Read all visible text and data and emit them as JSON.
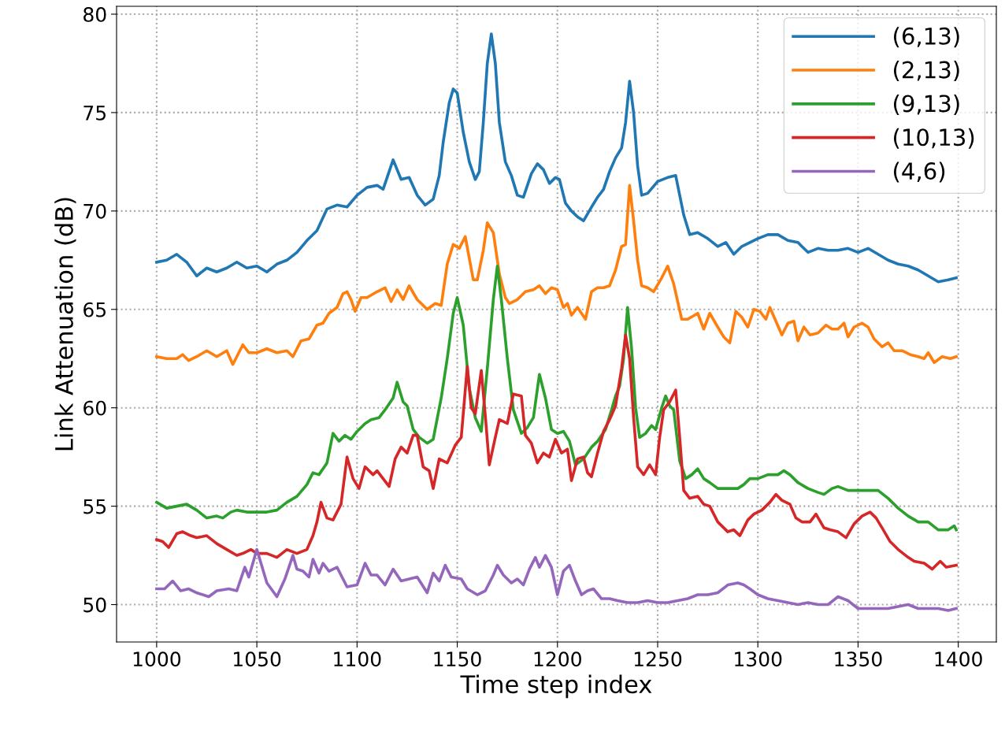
{
  "chart_data": {
    "type": "line",
    "xlabel": "Time step index",
    "ylabel": "Link Attenuation (dB)",
    "xlim": [
      980,
      1419
    ],
    "xticks": [
      1000,
      1050,
      1100,
      1150,
      1200,
      1250,
      1300,
      1350,
      1400
    ],
    "ylim": [
      48.1,
      80.4
    ],
    "yticks": [
      50,
      55,
      60,
      65,
      70,
      75,
      80
    ],
    "grid": true,
    "legend": "top right",
    "line_style": "solid",
    "marker": "none",
    "series": [
      {
        "name": "(6,13)",
        "color": "#1f77b4",
        "x": [
          1000,
          1005,
          1010,
          1015,
          1020,
          1025,
          1030,
          1035,
          1040,
          1045,
          1050,
          1055,
          1060,
          1065,
          1070,
          1075,
          1080,
          1085,
          1090,
          1095,
          1100,
          1105,
          1110,
          1113,
          1118,
          1122,
          1126,
          1130,
          1134,
          1138,
          1141,
          1143,
          1146,
          1148,
          1150,
          1153,
          1156,
          1159,
          1161,
          1163,
          1165,
          1167,
          1169,
          1171,
          1174,
          1177,
          1180,
          1183,
          1187,
          1190,
          1193,
          1196,
          1199,
          1201,
          1204,
          1207,
          1210,
          1213,
          1217,
          1220,
          1223,
          1226,
          1229,
          1232,
          1234,
          1236,
          1238,
          1240,
          1242,
          1245,
          1250,
          1255,
          1259,
          1263,
          1266,
          1270,
          1275,
          1280,
          1284,
          1288,
          1292,
          1296,
          1300,
          1305,
          1310,
          1315,
          1320,
          1325,
          1330,
          1335,
          1340,
          1345,
          1350,
          1355,
          1360,
          1365,
          1370,
          1375,
          1380,
          1385,
          1390,
          1395,
          1399
        ],
        "values": [
          67.4,
          67.5,
          67.8,
          67.4,
          66.7,
          67.1,
          66.9,
          67.1,
          67.4,
          67.1,
          67.2,
          66.9,
          67.3,
          67.5,
          67.9,
          68.5,
          69.0,
          70.1,
          70.3,
          70.2,
          70.8,
          71.2,
          71.3,
          71.1,
          72.6,
          71.6,
          71.7,
          70.8,
          70.3,
          70.6,
          71.8,
          73.5,
          75.5,
          76.2,
          76.0,
          74.0,
          72.5,
          71.6,
          72.0,
          74.5,
          77.5,
          79.0,
          77.5,
          74.5,
          72.5,
          71.8,
          70.8,
          70.7,
          71.9,
          72.4,
          72.1,
          71.4,
          71.7,
          71.6,
          70.4,
          70.0,
          69.7,
          69.5,
          70.2,
          70.7,
          71.1,
          72.0,
          72.7,
          73.2,
          74.5,
          76.6,
          75.0,
          72.3,
          70.8,
          70.9,
          71.5,
          71.7,
          71.8,
          69.8,
          68.8,
          68.9,
          68.6,
          68.2,
          68.4,
          67.8,
          68.2,
          68.4,
          68.6,
          68.8,
          68.8,
          68.5,
          68.4,
          67.9,
          68.1,
          68.0,
          68.0,
          68.1,
          67.9,
          68.1,
          67.8,
          67.5,
          67.3,
          67.2,
          67.0,
          66.7,
          66.4,
          66.5,
          66.6
        ]
      },
      {
        "name": "(2,13)",
        "color": "#ff7f0e",
        "x": [
          1000,
          1005,
          1010,
          1013,
          1016,
          1020,
          1025,
          1030,
          1035,
          1038,
          1043,
          1046,
          1050,
          1055,
          1060,
          1065,
          1068,
          1072,
          1076,
          1080,
          1083,
          1086,
          1090,
          1093,
          1095,
          1097,
          1099,
          1102,
          1105,
          1110,
          1114,
          1117,
          1120,
          1123,
          1126,
          1130,
          1135,
          1139,
          1142,
          1145,
          1148,
          1151,
          1154,
          1158,
          1160,
          1163,
          1165,
          1168,
          1171,
          1174,
          1176,
          1180,
          1184,
          1188,
          1191,
          1194,
          1197,
          1200,
          1203,
          1205,
          1207,
          1210,
          1214,
          1217,
          1220,
          1223,
          1226,
          1229,
          1232,
          1234,
          1236,
          1238,
          1240,
          1242,
          1245,
          1248,
          1252,
          1255,
          1258,
          1262,
          1265,
          1270,
          1273,
          1276,
          1280,
          1283,
          1286,
          1289,
          1292,
          1295,
          1298,
          1301,
          1304,
          1306,
          1309,
          1312,
          1315,
          1318,
          1320,
          1323,
          1326,
          1330,
          1334,
          1337,
          1340,
          1343,
          1345,
          1348,
          1352,
          1355,
          1358,
          1362,
          1365,
          1368,
          1372,
          1376,
          1380,
          1383,
          1385,
          1388,
          1392,
          1396,
          1399
        ],
        "values": [
          62.6,
          62.5,
          62.5,
          62.7,
          62.4,
          62.6,
          62.9,
          62.6,
          62.9,
          62.2,
          63.2,
          62.8,
          62.8,
          63.0,
          62.8,
          62.9,
          62.6,
          63.4,
          63.5,
          64.2,
          64.3,
          64.8,
          65.1,
          65.8,
          65.9,
          65.5,
          64.9,
          65.6,
          65.6,
          65.9,
          66.1,
          65.4,
          66.0,
          65.5,
          66.2,
          65.5,
          65.0,
          65.3,
          65.2,
          67.3,
          68.3,
          68.1,
          68.7,
          66.5,
          66.5,
          68.0,
          69.4,
          68.9,
          66.8,
          65.6,
          65.3,
          65.5,
          65.9,
          66.0,
          66.2,
          65.8,
          66.1,
          66.0,
          65.1,
          65.3,
          64.7,
          65.1,
          64.5,
          65.9,
          66.1,
          66.1,
          66.2,
          67.0,
          68.2,
          68.3,
          71.3,
          69.5,
          67.5,
          66.2,
          66.1,
          65.9,
          66.6,
          67.2,
          66.3,
          64.5,
          64.5,
          64.8,
          64.0,
          64.8,
          64.1,
          63.6,
          63.3,
          64.9,
          64.6,
          64.1,
          65.0,
          64.9,
          64.5,
          65.1,
          64.4,
          63.7,
          64.3,
          64.4,
          63.4,
          64.1,
          63.7,
          63.8,
          64.2,
          64.0,
          64.0,
          64.3,
          63.6,
          64.1,
          64.3,
          64.1,
          63.5,
          63.1,
          63.3,
          62.9,
          62.9,
          62.7,
          62.6,
          62.5,
          62.8,
          62.3,
          62.6,
          62.5,
          62.6
        ]
      },
      {
        "name": "(9,13)",
        "color": "#2ca02c",
        "x": [
          1000,
          1005,
          1010,
          1015,
          1020,
          1025,
          1030,
          1033,
          1037,
          1040,
          1045,
          1050,
          1055,
          1060,
          1065,
          1070,
          1075,
          1078,
          1081,
          1085,
          1088,
          1091,
          1094,
          1097,
          1100,
          1104,
          1107,
          1111,
          1114,
          1118,
          1120,
          1123,
          1125,
          1128,
          1131,
          1135,
          1138,
          1142,
          1145,
          1148,
          1150,
          1153,
          1156,
          1159,
          1162,
          1165,
          1168,
          1170,
          1172,
          1175,
          1178,
          1182,
          1185,
          1188,
          1191,
          1194,
          1197,
          1200,
          1203,
          1206,
          1209,
          1213,
          1217,
          1220,
          1224,
          1227,
          1229,
          1231,
          1233,
          1235,
          1237,
          1239,
          1241,
          1244,
          1247,
          1249,
          1252,
          1254,
          1256,
          1258,
          1261,
          1264,
          1267,
          1270,
          1273,
          1276,
          1280,
          1285,
          1290,
          1293,
          1296,
          1300,
          1305,
          1310,
          1313,
          1316,
          1320,
          1325,
          1330,
          1333,
          1337,
          1340,
          1345,
          1350,
          1355,
          1360,
          1365,
          1370,
          1375,
          1380,
          1385,
          1390,
          1395,
          1398,
          1399
        ],
        "values": [
          55.2,
          54.9,
          55.0,
          55.1,
          54.8,
          54.4,
          54.5,
          54.4,
          54.7,
          54.8,
          54.7,
          54.7,
          54.7,
          54.8,
          55.2,
          55.5,
          56.1,
          56.7,
          56.6,
          57.2,
          58.7,
          58.3,
          58.6,
          58.4,
          58.8,
          59.2,
          59.4,
          59.5,
          59.9,
          60.5,
          61.3,
          60.3,
          60.1,
          58.9,
          58.5,
          58.2,
          58.4,
          60.5,
          62.5,
          64.8,
          65.6,
          64.2,
          61.0,
          59.5,
          58.8,
          62.0,
          65.5,
          67.2,
          65.5,
          62.5,
          59.9,
          58.7,
          59.0,
          59.5,
          61.7,
          60.5,
          58.9,
          58.7,
          58.8,
          58.3,
          57.1,
          57.4,
          58.0,
          58.3,
          58.9,
          59.9,
          60.6,
          61.1,
          62.5,
          65.1,
          63.0,
          60.0,
          58.5,
          58.7,
          59.1,
          58.9,
          60.0,
          60.6,
          60.1,
          59.9,
          57.3,
          56.4,
          56.6,
          56.9,
          56.4,
          56.2,
          55.9,
          55.9,
          55.9,
          56.1,
          56.4,
          56.4,
          56.6,
          56.6,
          56.8,
          56.6,
          56.2,
          55.9,
          55.7,
          55.6,
          55.9,
          56.0,
          55.8,
          55.8,
          55.8,
          55.8,
          55.4,
          54.9,
          54.5,
          54.2,
          54.2,
          53.8,
          53.8,
          54.0,
          53.8
        ]
      },
      {
        "name": "(10,13)",
        "color": "#d62728",
        "x": [
          1000,
          1003,
          1006,
          1010,
          1013,
          1017,
          1020,
          1025,
          1030,
          1035,
          1040,
          1043,
          1047,
          1050,
          1055,
          1060,
          1065,
          1070,
          1075,
          1078,
          1080,
          1082,
          1085,
          1088,
          1092,
          1095,
          1098,
          1101,
          1104,
          1108,
          1110,
          1113,
          1116,
          1119,
          1122,
          1125,
          1128,
          1130,
          1133,
          1136,
          1138,
          1141,
          1145,
          1149,
          1152,
          1155,
          1157,
          1159,
          1162,
          1164,
          1166,
          1169,
          1171,
          1175,
          1178,
          1182,
          1184,
          1187,
          1190,
          1193,
          1196,
          1199,
          1202,
          1205,
          1207,
          1210,
          1213,
          1215,
          1217,
          1220,
          1223,
          1226,
          1229,
          1232,
          1234,
          1236,
          1238,
          1240,
          1243,
          1246,
          1249,
          1251,
          1253,
          1256,
          1259,
          1261,
          1263,
          1266,
          1270,
          1273,
          1276,
          1280,
          1285,
          1288,
          1291,
          1295,
          1298,
          1302,
          1306,
          1309,
          1312,
          1316,
          1319,
          1322,
          1326,
          1329,
          1333,
          1336,
          1340,
          1344,
          1348,
          1352,
          1356,
          1359,
          1362,
          1366,
          1370,
          1375,
          1378,
          1383,
          1387,
          1391,
          1394,
          1399
        ],
        "values": [
          53.3,
          53.2,
          52.9,
          53.6,
          53.7,
          53.5,
          53.4,
          53.5,
          53.1,
          52.8,
          52.5,
          52.6,
          52.8,
          52.6,
          52.6,
          52.4,
          52.8,
          52.6,
          52.8,
          53.5,
          54.2,
          55.2,
          54.4,
          54.3,
          55.1,
          57.5,
          56.4,
          55.9,
          57.0,
          56.6,
          56.8,
          56.4,
          56.0,
          57.4,
          58.0,
          57.7,
          58.6,
          58.6,
          57.0,
          56.8,
          55.9,
          57.4,
          57.2,
          58.1,
          58.5,
          62.1,
          60.0,
          59.7,
          61.9,
          59.6,
          57.1,
          58.5,
          59.4,
          59.2,
          60.7,
          60.6,
          58.6,
          58.2,
          57.2,
          57.7,
          57.5,
          58.4,
          57.7,
          57.9,
          56.3,
          57.4,
          57.5,
          56.7,
          56.5,
          57.7,
          58.8,
          59.4,
          60.1,
          62.0,
          63.7,
          62.5,
          59.5,
          57.0,
          56.6,
          57.1,
          56.6,
          58.5,
          59.9,
          60.3,
          60.9,
          58.5,
          55.8,
          55.4,
          55.5,
          55.1,
          55.0,
          54.2,
          53.7,
          53.8,
          53.5,
          54.3,
          54.6,
          54.8,
          55.2,
          55.6,
          55.3,
          55.1,
          54.4,
          54.2,
          54.2,
          54.6,
          53.9,
          53.8,
          53.7,
          53.4,
          54.1,
          54.5,
          54.7,
          54.4,
          53.9,
          53.2,
          52.8,
          52.4,
          52.2,
          52.1,
          51.8,
          52.2,
          51.9,
          52.0
        ]
      },
      {
        "name": "(4,6)",
        "color": "#9467bd",
        "x": [
          1000,
          1004,
          1008,
          1012,
          1016,
          1020,
          1026,
          1030,
          1036,
          1040,
          1044,
          1046,
          1050,
          1055,
          1060,
          1064,
          1068,
          1070,
          1073,
          1076,
          1078,
          1081,
          1083,
          1086,
          1090,
          1095,
          1100,
          1104,
          1107,
          1110,
          1114,
          1118,
          1122,
          1126,
          1130,
          1135,
          1138,
          1141,
          1144,
          1147,
          1152,
          1155,
          1160,
          1164,
          1168,
          1170,
          1173,
          1177,
          1180,
          1183,
          1186,
          1189,
          1191,
          1194,
          1197,
          1200,
          1203,
          1206,
          1209,
          1212,
          1215,
          1218,
          1222,
          1226,
          1230,
          1235,
          1240,
          1245,
          1250,
          1255,
          1260,
          1265,
          1270,
          1275,
          1280,
          1285,
          1290,
          1293,
          1296,
          1300,
          1305,
          1310,
          1315,
          1320,
          1325,
          1330,
          1335,
          1340,
          1345,
          1350,
          1355,
          1360,
          1365,
          1370,
          1375,
          1380,
          1385,
          1390,
          1395,
          1399
        ],
        "values": [
          50.8,
          50.8,
          51.2,
          50.7,
          50.8,
          50.6,
          50.4,
          50.7,
          50.8,
          50.7,
          51.9,
          51.4,
          52.8,
          51.1,
          50.4,
          51.3,
          52.5,
          51.8,
          51.7,
          51.4,
          52.3,
          51.6,
          52.1,
          51.7,
          51.9,
          50.9,
          51.0,
          52.1,
          51.5,
          51.5,
          51.0,
          51.8,
          51.2,
          51.3,
          51.4,
          50.6,
          51.6,
          51.2,
          52.0,
          51.4,
          51.3,
          50.8,
          50.5,
          50.7,
          51.5,
          52.0,
          51.5,
          51.1,
          51.3,
          51.0,
          51.8,
          52.4,
          51.9,
          52.5,
          51.9,
          50.5,
          51.7,
          52.0,
          51.2,
          50.5,
          50.7,
          50.8,
          50.3,
          50.3,
          50.2,
          50.1,
          50.1,
          50.2,
          50.1,
          50.1,
          50.2,
          50.3,
          50.5,
          50.5,
          50.6,
          51.0,
          51.1,
          51.0,
          50.8,
          50.5,
          50.3,
          50.2,
          50.1,
          50.0,
          50.1,
          50.0,
          50.0,
          50.4,
          50.2,
          49.8,
          49.8,
          49.8,
          49.8,
          49.9,
          50.0,
          49.8,
          49.8,
          49.8,
          49.7,
          49.8
        ]
      }
    ]
  }
}
